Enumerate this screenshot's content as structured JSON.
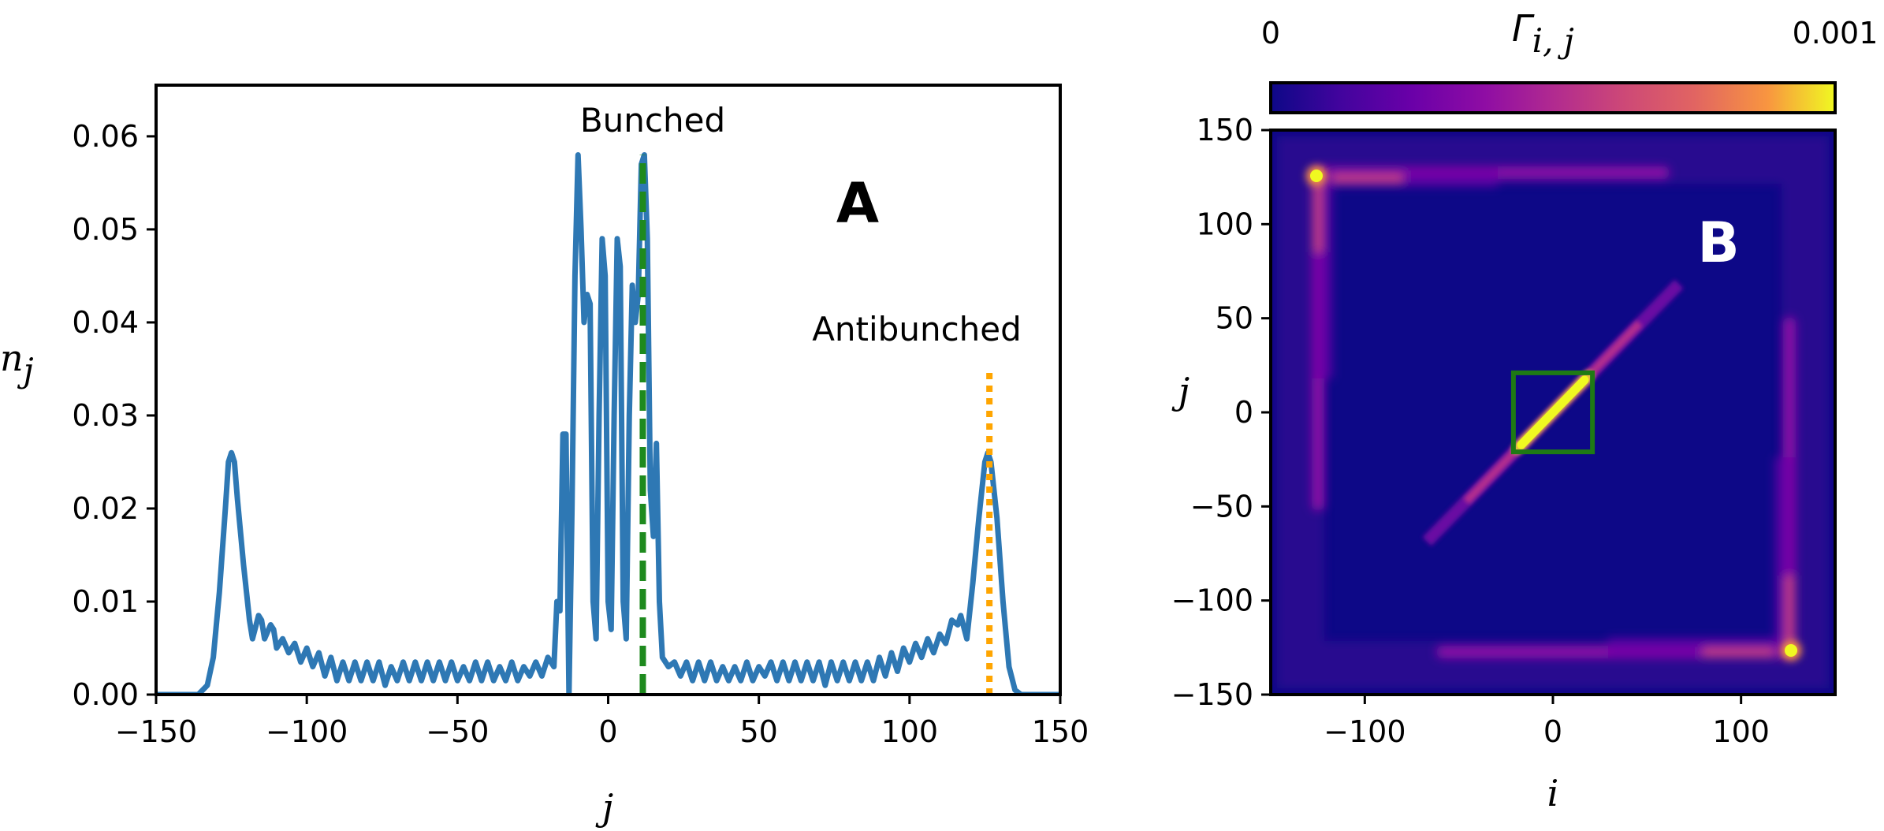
{
  "chart_data": [
    {
      "type": "line",
      "panel_label": "A",
      "xlabel": "j",
      "ylabel": "n",
      "ylabel_sub": "j",
      "xlim": [
        -150,
        150
      ],
      "ylim": [
        0,
        0.06
      ],
      "x_ticks": [
        "−150",
        "−100",
        "−50",
        "0",
        "50",
        "100",
        "150"
      ],
      "y_ticks": [
        "0.00",
        "0.01",
        "0.02",
        "0.03",
        "0.04",
        "0.05",
        "0.06"
      ],
      "grid": false,
      "series": [
        {
          "color": "#2e78b4",
          "points": [
            [
              -150,
              0.0
            ],
            [
              -136,
              0.0
            ],
            [
              -133,
              0.001
            ],
            [
              -131,
              0.004
            ],
            [
              -129,
              0.011
            ],
            [
              -127,
              0.02
            ],
            [
              -126,
              0.025
            ],
            [
              -125,
              0.026
            ],
            [
              -124,
              0.025
            ],
            [
              -123,
              0.021
            ],
            [
              -121,
              0.014
            ],
            [
              -119,
              0.008
            ],
            [
              -118,
              0.006
            ],
            [
              -116,
              0.0085
            ],
            [
              -115,
              0.008
            ],
            [
              -114,
              0.006
            ],
            [
              -112,
              0.0075
            ],
            [
              -111,
              0.007
            ],
            [
              -110,
              0.005
            ],
            [
              -108,
              0.006
            ],
            [
              -106,
              0.0045
            ],
            [
              -104,
              0.0055
            ],
            [
              -102,
              0.0035
            ],
            [
              -100,
              0.005
            ],
            [
              -98,
              0.003
            ],
            [
              -96,
              0.0045
            ],
            [
              -94,
              0.002
            ],
            [
              -92,
              0.004
            ],
            [
              -90,
              0.0015
            ],
            [
              -88,
              0.0035
            ],
            [
              -86,
              0.0015
            ],
            [
              -84,
              0.0035
            ],
            [
              -82,
              0.0015
            ],
            [
              -80,
              0.0035
            ],
            [
              -78,
              0.0015
            ],
            [
              -76,
              0.0035
            ],
            [
              -74,
              0.001
            ],
            [
              -72,
              0.003
            ],
            [
              -70,
              0.0015
            ],
            [
              -68,
              0.0035
            ],
            [
              -66,
              0.0015
            ],
            [
              -64,
              0.0035
            ],
            [
              -62,
              0.0015
            ],
            [
              -60,
              0.0035
            ],
            [
              -58,
              0.0015
            ],
            [
              -56,
              0.0035
            ],
            [
              -54,
              0.0015
            ],
            [
              -52,
              0.0035
            ],
            [
              -50,
              0.0015
            ],
            [
              -48,
              0.003
            ],
            [
              -46,
              0.0015
            ],
            [
              -44,
              0.0035
            ],
            [
              -42,
              0.0015
            ],
            [
              -40,
              0.0035
            ],
            [
              -38,
              0.0015
            ],
            [
              -36,
              0.003
            ],
            [
              -34,
              0.0015
            ],
            [
              -32,
              0.0035
            ],
            [
              -30,
              0.0015
            ],
            [
              -28,
              0.003
            ],
            [
              -26,
              0.002
            ],
            [
              -24,
              0.0035
            ],
            [
              -22,
              0.002
            ],
            [
              -20,
              0.004
            ],
            [
              -18,
              0.003
            ],
            [
              -17,
              0.01
            ],
            [
              -16,
              0.009
            ],
            [
              -15,
              0.028
            ],
            [
              -14,
              0.028
            ],
            [
              -13,
              0.0
            ],
            [
              -12,
              0.02
            ],
            [
              -11,
              0.045
            ],
            [
              -10,
              0.058
            ],
            [
              -9,
              0.05
            ],
            [
              -8,
              0.04
            ],
            [
              -7,
              0.043
            ],
            [
              -6,
              0.042
            ],
            [
              -5,
              0.01
            ],
            [
              -4,
              0.006
            ],
            [
              -3,
              0.03
            ],
            [
              -2,
              0.049
            ],
            [
              -1,
              0.045
            ],
            [
              0,
              0.01
            ],
            [
              1,
              0.007
            ],
            [
              2,
              0.03
            ],
            [
              3,
              0.049
            ],
            [
              4,
              0.046
            ],
            [
              5,
              0.01
            ],
            [
              6,
              0.006
            ],
            [
              7,
              0.03
            ],
            [
              8,
              0.044
            ],
            [
              9,
              0.04
            ],
            [
              10,
              0.043
            ],
            [
              11,
              0.057
            ],
            [
              12,
              0.058
            ],
            [
              13,
              0.049
            ],
            [
              14,
              0.022
            ],
            [
              15,
              0.017
            ],
            [
              16,
              0.027
            ],
            [
              17,
              0.01
            ],
            [
              18,
              0.004
            ],
            [
              20,
              0.003
            ],
            [
              22,
              0.0035
            ],
            [
              24,
              0.002
            ],
            [
              26,
              0.0035
            ],
            [
              28,
              0.0015
            ],
            [
              30,
              0.0035
            ],
            [
              32,
              0.0015
            ],
            [
              34,
              0.0035
            ],
            [
              36,
              0.0015
            ],
            [
              38,
              0.003
            ],
            [
              40,
              0.0015
            ],
            [
              42,
              0.003
            ],
            [
              44,
              0.0015
            ],
            [
              46,
              0.0035
            ],
            [
              48,
              0.0015
            ],
            [
              50,
              0.003
            ],
            [
              52,
              0.002
            ],
            [
              54,
              0.0035
            ],
            [
              56,
              0.0015
            ],
            [
              58,
              0.0035
            ],
            [
              60,
              0.0015
            ],
            [
              62,
              0.0035
            ],
            [
              64,
              0.0015
            ],
            [
              66,
              0.0035
            ],
            [
              68,
              0.0015
            ],
            [
              70,
              0.0035
            ],
            [
              72,
              0.001
            ],
            [
              74,
              0.0035
            ],
            [
              76,
              0.0015
            ],
            [
              78,
              0.0035
            ],
            [
              80,
              0.0015
            ],
            [
              82,
              0.0035
            ],
            [
              84,
              0.0015
            ],
            [
              86,
              0.0035
            ],
            [
              88,
              0.0015
            ],
            [
              90,
              0.004
            ],
            [
              92,
              0.002
            ],
            [
              94,
              0.0045
            ],
            [
              96,
              0.0025
            ],
            [
              98,
              0.005
            ],
            [
              100,
              0.0035
            ],
            [
              102,
              0.0055
            ],
            [
              104,
              0.004
            ],
            [
              106,
              0.006
            ],
            [
              108,
              0.0045
            ],
            [
              110,
              0.0065
            ],
            [
              112,
              0.0055
            ],
            [
              114,
              0.008
            ],
            [
              116,
              0.0075
            ],
            [
              117,
              0.0085
            ],
            [
              119,
              0.006
            ],
            [
              121,
              0.012
            ],
            [
              123,
              0.019
            ],
            [
              125,
              0.025
            ],
            [
              126,
              0.026
            ],
            [
              127,
              0.025
            ],
            [
              129,
              0.019
            ],
            [
              131,
              0.01
            ],
            [
              133,
              0.003
            ],
            [
              135,
              0.0005
            ],
            [
              137,
              0.0
            ],
            [
              150,
              0.0
            ]
          ]
        }
      ],
      "vlines": [
        {
          "x": 11.5,
          "color": "#1e8a1e",
          "style": "dashed",
          "label": "Bunched",
          "y_top": 0.058
        },
        {
          "x": 126.5,
          "color": "#ffa500",
          "style": "dotted",
          "label": "Antibunched",
          "y_top": 0.035
        }
      ]
    },
    {
      "type": "heatmap",
      "panel_label": "B",
      "xlabel": "i",
      "ylabel": "j",
      "xlim": [
        -150,
        150
      ],
      "ylim": [
        -150,
        150
      ],
      "x_ticks": [
        "−100",
        "0",
        "100"
      ],
      "y_ticks": [
        "150",
        "100",
        "50",
        "0",
        "−50",
        "−100",
        "−150"
      ],
      "colorbar": {
        "label": "Γ",
        "label_sub": "i, j",
        "min_label": "0",
        "max_label": "0.001",
        "range": [
          0,
          0.001
        ]
      },
      "highlight_box": {
        "i": [
          -21,
          21
        ],
        "j": [
          -21,
          21
        ],
        "color": "#1e7a14"
      },
      "features": {
        "background": 0.0,
        "diagonal_center": 0.001,
        "diagonal_tail": 0.0002,
        "edge_bands": 0.0003,
        "corner_peaks": 0.001
      }
    }
  ]
}
